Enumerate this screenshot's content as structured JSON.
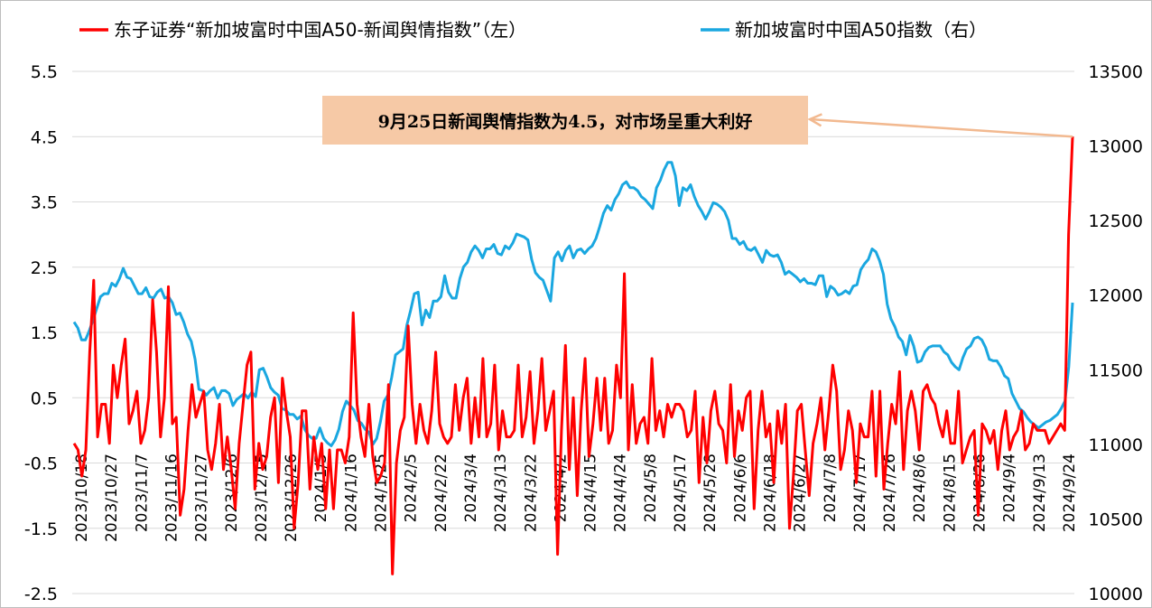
{
  "chart_data": {
    "type": "line",
    "legend": {
      "placement": "top",
      "entries": [
        {
          "label": "东子证券“新加坡富时中国A50-新闻舆情指数”（左）",
          "color": "#ff0000"
        },
        {
          "label": "新加坡富时中国A50指数（右）",
          "color": "#1aa7e0"
        }
      ]
    },
    "grid": true,
    "y_left": {
      "ticks": [
        "-2.5",
        "-1.5",
        "-0.5",
        "0.5",
        "1.5",
        "2.5",
        "3.5",
        "4.5",
        "5.5"
      ],
      "ylim": [
        -2.5,
        5.5
      ]
    },
    "y_right": {
      "ticks": [
        "10000",
        "10500",
        "11000",
        "11500",
        "12000",
        "12500",
        "13000",
        "13500"
      ],
      "ylim": [
        10000,
        13500
      ]
    },
    "x_ticks": [
      "2023/10/18",
      "2023/10/27",
      "2023/11/7",
      "2023/11/16",
      "2023/11/27",
      "2023/12/6",
      "2023/12/15",
      "2023/12/26",
      "2024/1/5",
      "2024/1/16",
      "2024/1/25",
      "2024/2/5",
      "2024/2/22",
      "2024/3/4",
      "2024/3/13",
      "2024/3/22",
      "2024/4/2",
      "2024/4/15",
      "2024/4/24",
      "2024/5/8",
      "2024/5/17",
      "2024/5/28",
      "2024/6/6",
      "2024/6/18",
      "2024/6/27",
      "2024/7/8",
      "2024/7/17",
      "2024/7/26",
      "2024/8/6",
      "2024/8/15",
      "2024/8/26",
      "2024/9/4",
      "2024/9/13",
      "2024/9/24"
    ],
    "series": [
      {
        "name": "东子证券“新加坡富时中国A50-新闻舆情指数”（左）",
        "axis": "left",
        "color": "#ff0000",
        "values": [
          -0.2,
          -0.3,
          -0.7,
          -0.3,
          1.2,
          2.3,
          -0.1,
          0.4,
          0.4,
          -0.2,
          1.0,
          0.5,
          1.0,
          1.4,
          0.1,
          0.3,
          0.6,
          -0.2,
          0.0,
          0.5,
          2.0,
          1.2,
          -0.1,
          0.5,
          2.2,
          0.1,
          0.2,
          -1.3,
          -0.9,
          0.0,
          0.7,
          0.2,
          0.4,
          0.6,
          -0.3,
          -0.6,
          -0.2,
          0.4,
          -0.6,
          -0.1,
          -0.6,
          -1.2,
          -0.2,
          0.4,
          1.0,
          1.2,
          -0.9,
          -0.2,
          -0.6,
          -0.4,
          0.2,
          0.5,
          -0.8,
          0.8,
          0.3,
          -0.1,
          -1.5,
          -0.8,
          0.3,
          0.3,
          -0.9,
          -0.1,
          -0.6,
          -0.2,
          -1.2,
          -0.3,
          -1.2,
          -0.3,
          -0.3,
          -0.5,
          -0.1,
          1.8,
          0.4,
          -0.1,
          -0.4,
          0.4,
          -0.4,
          -0.8,
          -0.7,
          -0.5,
          0.7,
          -2.2,
          -0.5,
          0.0,
          0.2,
          1.6,
          0.4,
          -0.2,
          0.4,
          0.0,
          -0.2,
          0.3,
          1.2,
          0.1,
          -0.1,
          -0.2,
          -0.1,
          0.7,
          0.0,
          0.5,
          0.8,
          -0.2,
          0.5,
          -0.1,
          1.1,
          -0.1,
          0.1,
          1.0,
          -0.3,
          0.3,
          -0.1,
          -0.1,
          0.0,
          1.0,
          -0.1,
          0.2,
          0.9,
          -0.2,
          0.3,
          1.1,
          0.0,
          0.3,
          0.6,
          -1.9,
          0.0,
          1.3,
          -0.6,
          0.5,
          -1.0,
          0.3,
          1.1,
          -0.4,
          0.1,
          0.8,
          0.0,
          0.8,
          -0.2,
          0.0,
          1.0,
          0.5,
          2.4,
          -0.3,
          0.7,
          -0.2,
          0.1,
          0.2,
          -0.2,
          1.1,
          0.0,
          0.3,
          -0.1,
          0.4,
          0.2,
          0.4,
          0.4,
          0.3,
          -0.1,
          0.0,
          0.6,
          -0.8,
          0.2,
          -0.5,
          0.3,
          0.6,
          0.1,
          0.0,
          -0.5,
          0.7,
          -0.4,
          0.3,
          0.0,
          0.5,
          0.6,
          -1.2,
          0.0,
          0.6,
          -0.1,
          0.1,
          -0.8,
          0.3,
          -0.2,
          0.4,
          -1.5,
          -0.7,
          0.3,
          0.4,
          -0.3,
          -1.0,
          -0.2,
          0.1,
          0.5,
          -0.3,
          0.3,
          1.0,
          0.6,
          -0.6,
          -0.3,
          0.3,
          0.0,
          -0.8,
          0.1,
          -0.1,
          -0.1,
          0.6,
          -0.7,
          0.6,
          -0.9,
          -0.2,
          0.4,
          0.1,
          0.9,
          -0.6,
          0.3,
          0.6,
          0.3,
          -0.3,
          0.6,
          0.7,
          0.5,
          0.4,
          0.1,
          -0.1,
          0.3,
          -0.2,
          -0.2,
          0.6,
          -0.5,
          -0.3,
          -0.1,
          0.0,
          -1.3,
          0.1,
          0.0,
          -0.2,
          0.0,
          -0.6,
          0.0,
          0.3,
          -0.3,
          -0.1,
          0.0,
          0.3,
          -0.3,
          -0.2,
          0.1,
          0.0,
          0.0,
          0.0,
          -0.2,
          -0.1,
          0.0,
          0.1,
          0.0,
          3.0,
          4.5
        ]
      },
      {
        "name": "新加坡富时中国A50指数（右）",
        "axis": "right",
        "color": "#1aa7e0",
        "values": [
          11820,
          11780,
          11700,
          11700,
          11760,
          11830,
          11910,
          11990,
          12010,
          12010,
          12080,
          12060,
          12110,
          12180,
          12120,
          12110,
          12060,
          12010,
          12010,
          12050,
          11990,
          11980,
          12020,
          12040,
          11980,
          11990,
          11950,
          11870,
          11880,
          11820,
          11740,
          11690,
          11570,
          11370,
          11360,
          11330,
          11360,
          11380,
          11310,
          11360,
          11360,
          11340,
          11260,
          11300,
          11320,
          11340,
          11310,
          11350,
          11320,
          11500,
          11510,
          11450,
          11380,
          11350,
          11330,
          11240,
          11230,
          11200,
          11200,
          11170,
          11190,
          11100,
          11060,
          11040,
          11040,
          11110,
          11040,
          11010,
          10990,
          11030,
          11100,
          11220,
          11290,
          11260,
          11230,
          11160,
          11140,
          11100,
          11080,
          11000,
          11040,
          11150,
          11290,
          11330,
          11450,
          11600,
          11620,
          11640,
          11800,
          11900,
          12010,
          12020,
          11800,
          11900,
          11850,
          11960,
          11960,
          11990,
          12130,
          12020,
          11980,
          11980,
          12110,
          12190,
          12220,
          12290,
          12330,
          12300,
          12250,
          12310,
          12310,
          12340,
          12280,
          12270,
          12330,
          12310,
          12350,
          12410,
          12400,
          12390,
          12370,
          12240,
          12150,
          12120,
          12100,
          12030,
          11960,
          12250,
          12290,
          12230,
          12300,
          12330,
          12250,
          12300,
          12310,
          12280,
          12310,
          12330,
          12380,
          12460,
          12550,
          12600,
          12570,
          12640,
          12680,
          12740,
          12760,
          12720,
          12720,
          12700,
          12660,
          12640,
          12610,
          12580,
          12720,
          12770,
          12840,
          12890,
          12890,
          12800,
          12600,
          12720,
          12700,
          12740,
          12660,
          12600,
          12560,
          12510,
          12560,
          12620,
          12610,
          12590,
          12560,
          12500,
          12380,
          12380,
          12340,
          12360,
          12310,
          12300,
          12320,
          12270,
          12220,
          12300,
          12270,
          12260,
          12270,
          12220,
          12140,
          12160,
          12140,
          12120,
          12090,
          12110,
          12080,
          12080,
          12070,
          12130,
          12130,
          11990,
          12060,
          12040,
          12000,
          12010,
          12030,
          12010,
          12060,
          12070,
          12170,
          12210,
          12240,
          12310,
          12290,
          12230,
          12140,
          11940,
          11840,
          11790,
          11720,
          11690,
          11600,
          11730,
          11660,
          11550,
          11560,
          11620,
          11650,
          11660,
          11660,
          11660,
          11620,
          11600,
          11550,
          11520,
          11500,
          11580,
          11640,
          11660,
          11710,
          11720,
          11700,
          11650,
          11570,
          11560,
          11560,
          11520,
          11460,
          11440,
          11340,
          11290,
          11240,
          11220,
          11180,
          11150,
          11130,
          11110,
          11130,
          11150,
          11160,
          11180,
          11200,
          11240,
          11290,
          11520,
          11950
        ]
      }
    ],
    "annotation": {
      "text": "9月25日新闻舆情指数为4.5，对市场呈重大利好"
    }
  }
}
